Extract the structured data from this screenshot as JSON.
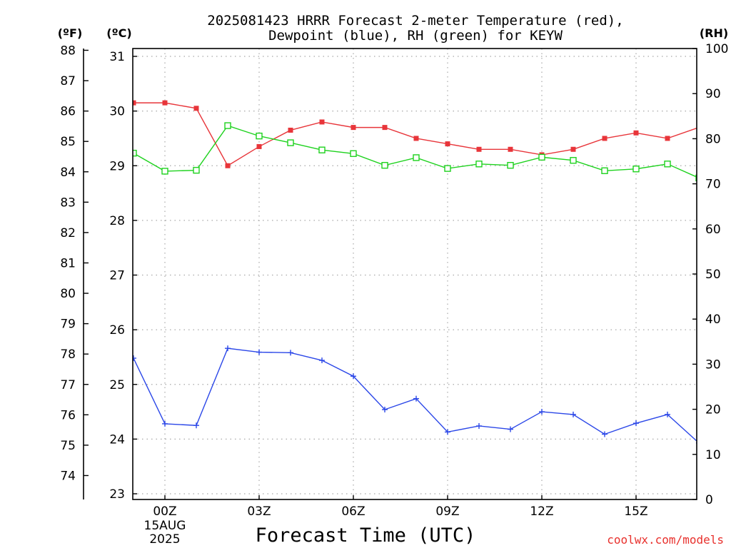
{
  "title_line1": "2025081423 HRRR Forecast 2-meter Temperature (red),",
  "title_line2": "Dewpoint (blue), RH (green) for KEYW",
  "unit_f": "(ºF)",
  "unit_c": "(ºC)",
  "unit_rh": "(RH)",
  "xlabel": "Forecast Time (UTC)",
  "credit": "coolwx.com/models",
  "colors": {
    "temperature": "#e8353a",
    "dewpoint": "#2b47e8",
    "rh": "#1ed21e",
    "grid": "#a8a8a8",
    "axis": "#000000"
  },
  "chart_data": {
    "type": "line",
    "x_hours": [
      23,
      0,
      1,
      2,
      3,
      4,
      5,
      6,
      7,
      8,
      9,
      10,
      11,
      12,
      13,
      14,
      15,
      16,
      17
    ],
    "xlim_hours_after_00z": [
      -1,
      17
    ],
    "x_ticks": [
      {
        "hour": 0,
        "label": "00Z",
        "sub": [
          "15AUG",
          "2025"
        ]
      },
      {
        "hour": 3,
        "label": "03Z"
      },
      {
        "hour": 6,
        "label": "06Z"
      },
      {
        "hour": 9,
        "label": "09Z"
      },
      {
        "hour": 12,
        "label": "12Z"
      },
      {
        "hour": 15,
        "label": "15Z"
      }
    ],
    "y_celsius": {
      "ylim": [
        22.9,
        31.2
      ],
      "ticks": [
        23,
        24,
        25,
        26,
        27,
        28,
        29,
        30,
        31
      ]
    },
    "y_fahrenheit": {
      "ticks": [
        74,
        75,
        76,
        77,
        78,
        79,
        80,
        81,
        82,
        83,
        84,
        85,
        86,
        87,
        88
      ]
    },
    "y_rh": {
      "ylim": [
        0,
        100
      ],
      "ticks": [
        0,
        10,
        20,
        30,
        40,
        50,
        60,
        70,
        80,
        90,
        100
      ]
    },
    "series": [
      {
        "key": "temperature",
        "marker": "filled-square",
        "unit": "C",
        "values": [
          30.15,
          30.15,
          30.05,
          29.0,
          29.35,
          29.65,
          29.8,
          29.7,
          29.7,
          29.5,
          29.4,
          29.3,
          29.3,
          29.2,
          29.3,
          29.5,
          29.6,
          29.5,
          29.7
        ]
      },
      {
        "key": "dewpoint",
        "marker": "plus",
        "unit": "C",
        "values": [
          25.48,
          24.28,
          24.25,
          25.66,
          25.59,
          25.58,
          25.44,
          25.15,
          24.54,
          24.74,
          24.13,
          24.24,
          24.18,
          24.5,
          24.45,
          24.09,
          24.29,
          24.45,
          23.93
        ]
      },
      {
        "key": "rh",
        "marker": "open-square",
        "unit": "%",
        "values": [
          76.8,
          72.8,
          73.0,
          82.9,
          80.6,
          79.1,
          77.5,
          76.7,
          74.1,
          75.8,
          73.4,
          74.4,
          74.1,
          75.9,
          75.2,
          72.9,
          73.3,
          74.4,
          71.3
        ]
      }
    ]
  }
}
